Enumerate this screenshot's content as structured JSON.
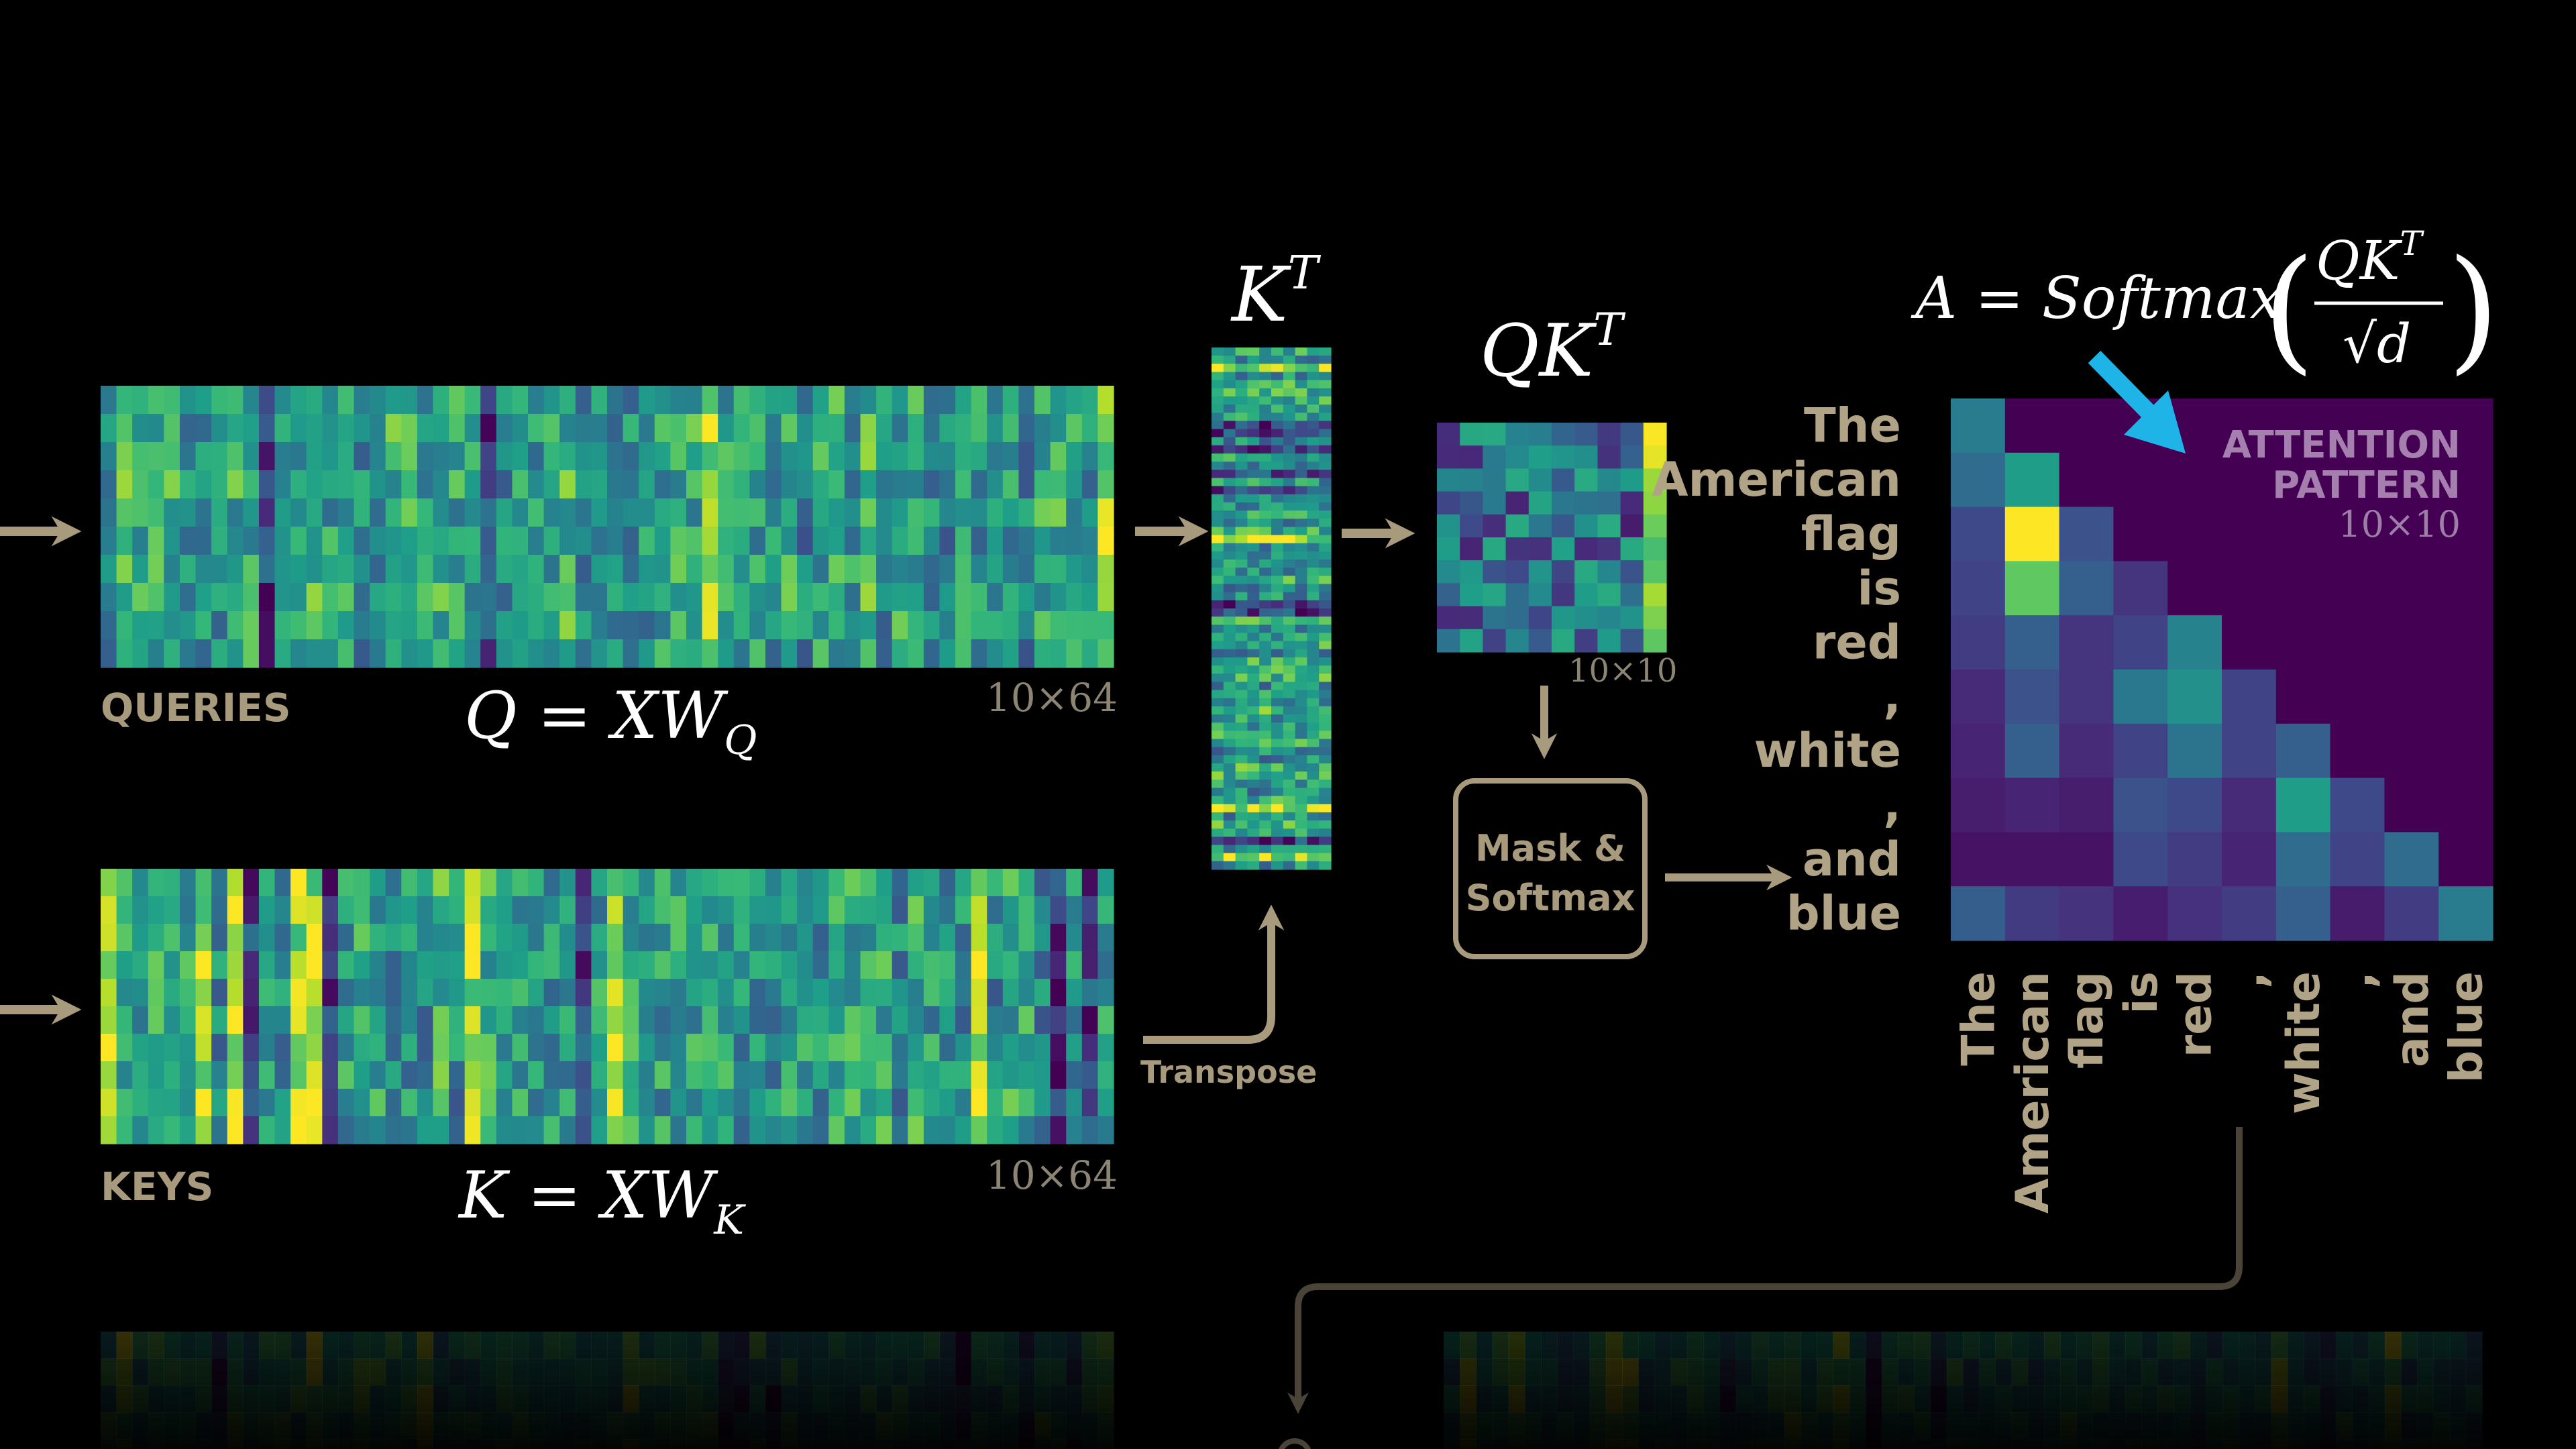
{
  "queries": {
    "label": "QUERIES",
    "formula": "Q = XW",
    "sub": "Q",
    "dims": "10×64"
  },
  "keys": {
    "label": "KEYS",
    "formula": "K = XW",
    "sub": "K",
    "dims": "10×64"
  },
  "kt": {
    "base": "K",
    "sup": "T"
  },
  "qkt": {
    "base": "QK",
    "sup": "T",
    "dims": "10×10"
  },
  "transpose_label": "Transpose",
  "mask_box": {
    "line1": "Mask &",
    "line2": "Softmax"
  },
  "softmax_formula": {
    "lhs": "A = Softmax",
    "num": "QK",
    "num_sup": "T",
    "den": "√d"
  },
  "attention": {
    "title1": "ATTENTION",
    "title2": "PATTERN",
    "dims": "10×10"
  },
  "tokens": [
    "The",
    "American",
    "flag",
    "is",
    "red",
    ",",
    "white",
    ",",
    "and",
    "blue"
  ],
  "colors": {
    "background": "#000000",
    "arrow": "#a89a7c",
    "pointer": "#1fb4e8",
    "mask_purple": "#440154"
  }
}
